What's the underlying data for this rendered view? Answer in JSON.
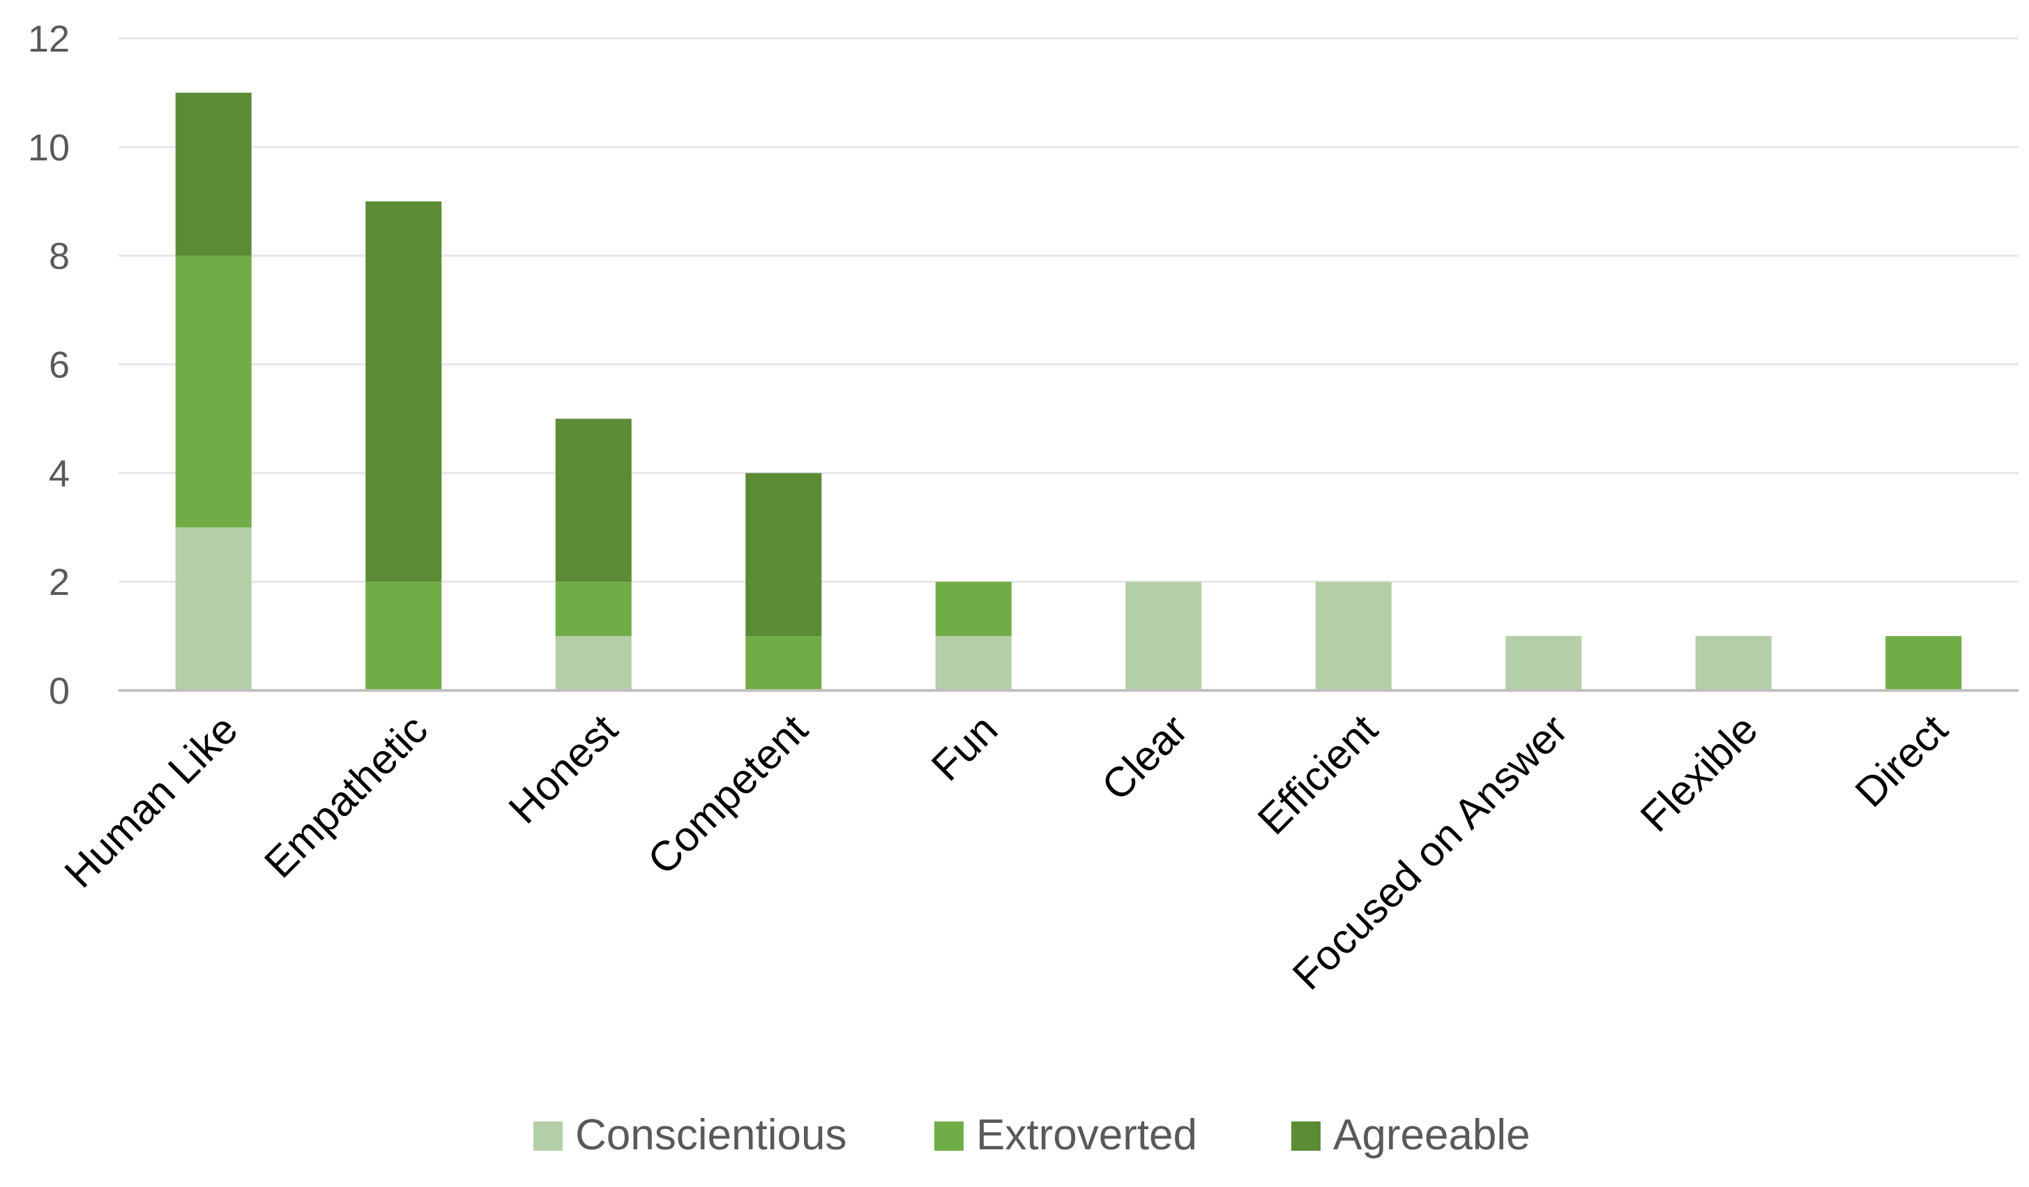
{
  "chart_data": {
    "type": "bar",
    "stacked": true,
    "title": "",
    "xlabel": "",
    "ylabel": "",
    "ylim": [
      0,
      12
    ],
    "yticks": [
      0,
      2,
      4,
      6,
      8,
      10,
      12
    ],
    "grid": true,
    "legend_position": "bottom",
    "categories": [
      "Human Like",
      "Empathetic",
      "Honest",
      "Competent",
      "Fun",
      "Clear",
      "Efficient",
      "Focused on Answer",
      "Flexible",
      "Direct"
    ],
    "series": [
      {
        "name": "Conscientious",
        "color": "#b4cfa7",
        "values": [
          3,
          0,
          1,
          0,
          1,
          2,
          2,
          1,
          1,
          0
        ]
      },
      {
        "name": "Extroverted",
        "color": "#71ad47",
        "values": [
          5,
          2,
          1,
          1,
          1,
          0,
          0,
          0,
          0,
          1
        ]
      },
      {
        "name": "Agreeable",
        "color": "#5b8c35",
        "values": [
          3,
          7,
          3,
          3,
          0,
          0,
          0,
          0,
          0,
          0
        ]
      }
    ]
  }
}
